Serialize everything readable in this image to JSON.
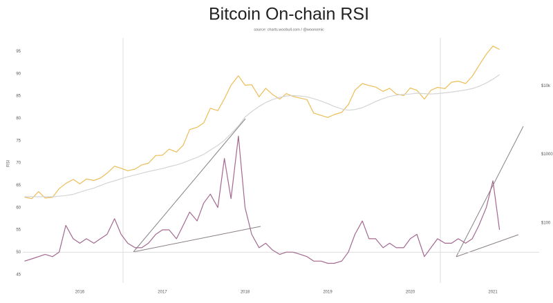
{
  "chart_data": {
    "type": "line",
    "title": "Bitcoin On-chain RSI",
    "subtitle": "source: charts.woobull.com / @woonomic",
    "y_label": "RSI",
    "x": [
      2015.33,
      2015.42,
      2015.5,
      2015.58,
      2015.67,
      2015.75,
      2015.83,
      2015.92,
      2016.0,
      2016.08,
      2016.17,
      2016.25,
      2016.33,
      2016.42,
      2016.5,
      2016.58,
      2016.67,
      2016.75,
      2016.83,
      2016.92,
      2017.0,
      2017.08,
      2017.17,
      2017.25,
      2017.33,
      2017.42,
      2017.5,
      2017.58,
      2017.67,
      2017.75,
      2017.83,
      2017.92,
      2018.0,
      2018.08,
      2018.17,
      2018.25,
      2018.33,
      2018.42,
      2018.5,
      2018.58,
      2018.67,
      2018.75,
      2018.83,
      2018.92,
      2019.0,
      2019.08,
      2019.17,
      2019.25,
      2019.33,
      2019.42,
      2019.5,
      2019.58,
      2019.67,
      2019.75,
      2019.83,
      2019.92,
      2020.0,
      2020.08,
      2020.17,
      2020.25,
      2020.33,
      2020.42,
      2020.5,
      2020.58,
      2020.67,
      2020.75,
      2020.83,
      2020.92,
      2021.0,
      2021.08
    ],
    "series": [
      {
        "color": "#ecbd55",
        "axis": "y2",
        "values": [
          237,
          225,
          285,
          230,
          235,
          315,
          375,
          430,
          370,
          435,
          415,
          450,
          530,
          670,
          625,
          575,
          610,
          700,
          740,
          960,
          970,
          1190,
          1080,
          1350,
          2300,
          2480,
          2870,
          4700,
          4340,
          6470,
          10200,
          14000,
          10200,
          10400,
          6900,
          9200,
          7500,
          6400,
          7700,
          7000,
          6600,
          6300,
          4000,
          3700,
          3450,
          3800,
          4100,
          5300,
          8600,
          10800,
          10100,
          9600,
          8300,
          9200,
          7600,
          7200,
          9300,
          8600,
          6400,
          8600,
          9500,
          9100,
          11300,
          11700,
          10800,
          13800,
          19700,
          29000,
          38000,
          34000
        ]
      },
      {
        "color": "#d4d4d4",
        "axis": "y2",
        "values": [
          240,
          240,
          240,
          240,
          240,
          245,
          250,
          260,
          280,
          300,
          320,
          350,
          380,
          410,
          440,
          470,
          500,
          530,
          560,
          590,
          620,
          660,
          700,
          750,
          820,
          900,
          1000,
          1150,
          1350,
          1600,
          2000,
          2600,
          3500,
          4200,
          5000,
          5700,
          6300,
          6800,
          7100,
          7200,
          7100,
          6900,
          6500,
          6000,
          5500,
          5000,
          4600,
          4400,
          4500,
          4800,
          5300,
          5900,
          6500,
          7000,
          7300,
          7500,
          7600,
          7800,
          7700,
          7600,
          7700,
          7900,
          8100,
          8400,
          8700,
          9100,
          9800,
          11000,
          12500,
          14500
        ]
      },
      {
        "color": "#a3688f",
        "values": [
          48,
          48.5,
          49,
          49.5,
          49,
          50,
          56,
          53,
          52,
          53,
          52,
          53,
          54,
          57.5,
          54,
          52,
          51,
          51,
          52,
          54,
          55,
          55,
          53,
          56,
          59,
          57,
          61,
          63,
          60,
          71,
          62,
          76,
          60,
          54,
          51,
          52,
          50.5,
          49.5,
          50,
          50,
          49.5,
          49,
          48,
          48,
          47.5,
          47.5,
          48,
          50,
          54,
          57,
          53,
          53,
          51,
          52,
          51,
          51,
          53,
          54,
          49,
          51,
          53,
          52,
          52,
          53,
          52,
          53,
          56,
          60,
          66,
          55
        ]
      }
    ],
    "xlim": [
      2015.31,
      2021.56
    ],
    "xticks": [
      2016,
      2017,
      2018,
      2019,
      2020,
      2021
    ],
    "ylim": [
      40,
      98
    ],
    "yticks": [
      45,
      50,
      55,
      60,
      65,
      70,
      75,
      80,
      85,
      90,
      95
    ],
    "y2lim": [
      8.3,
      50000
    ],
    "y2ticks": [
      {
        "value": 100,
        "label": "$100"
      },
      {
        "value": 1000,
        "label": "$1000"
      },
      {
        "value": 10000,
        "label": "$10k"
      }
    ],
    "y2log": true
  }
}
